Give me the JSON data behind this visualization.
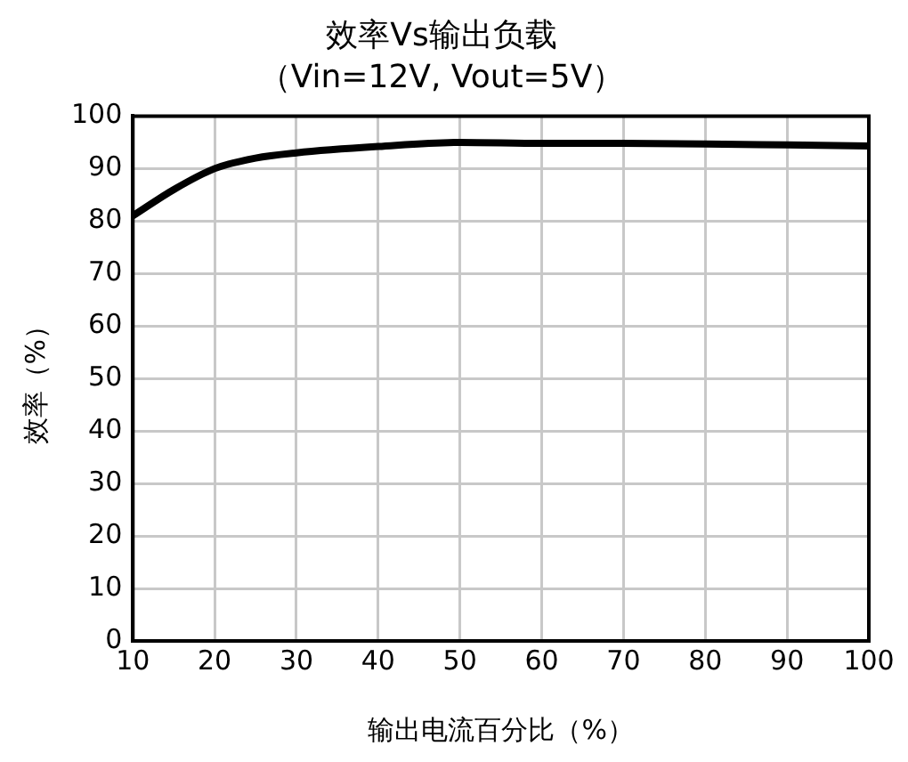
{
  "chart_data": {
    "type": "line",
    "title": "效率Vs输出负载",
    "subtitle": "（Vin=12V, Vout=5V）",
    "xlabel": "输出电流百分比（%）",
    "ylabel": "效率（%）",
    "x": [
      10,
      15,
      20,
      25,
      30,
      40,
      50,
      60,
      70,
      80,
      90,
      100
    ],
    "series": [
      {
        "color": "#000000",
        "values": [
          81,
          86,
          90,
          92,
          93,
          94.2,
          95,
          94.8,
          94.8,
          94.7,
          94.5,
          94.3
        ]
      }
    ],
    "xlim": [
      10,
      100
    ],
    "xticks": [
      10,
      20,
      30,
      40,
      50,
      60,
      70,
      80,
      90,
      100
    ],
    "ylim": [
      0,
      100
    ],
    "yticks": [
      0,
      10,
      20,
      30,
      40,
      50,
      60,
      70,
      80,
      90,
      100
    ],
    "grid": true,
    "legend": false,
    "marker": "none",
    "line_style": "solid"
  }
}
